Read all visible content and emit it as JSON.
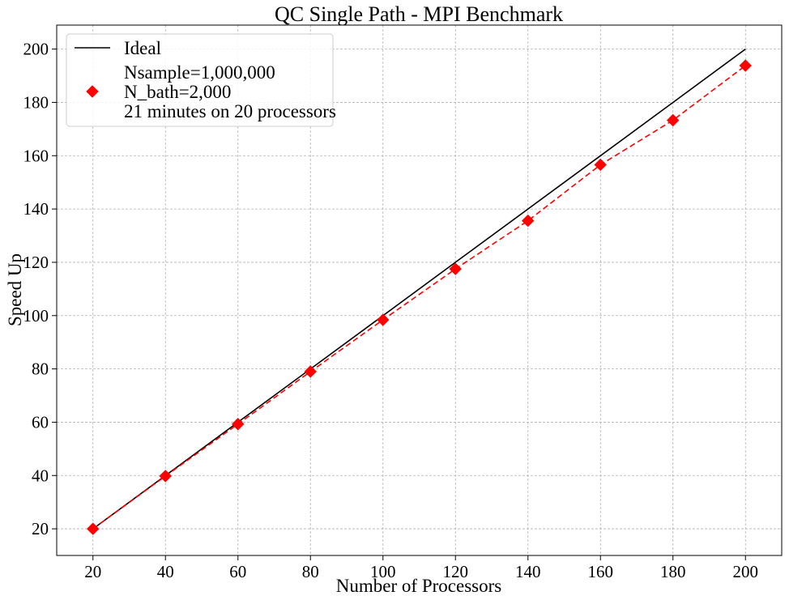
{
  "chart_data": {
    "type": "line",
    "title": "QC Single Path - MPI Benchmark",
    "xlabel": "Number of Processors",
    "ylabel": "Speed Up",
    "xlim": [
      10,
      210
    ],
    "ylim": [
      10,
      209
    ],
    "xticks": [
      20,
      40,
      60,
      80,
      100,
      120,
      140,
      160,
      180,
      200
    ],
    "yticks": [
      20,
      40,
      60,
      80,
      100,
      120,
      140,
      160,
      180,
      200
    ],
    "grid": true,
    "legend_position": "top-left",
    "series": [
      {
        "name": "Ideal",
        "style": "solid-line",
        "color": "#000000",
        "x": [
          20,
          40,
          60,
          80,
          100,
          120,
          140,
          160,
          180,
          200
        ],
        "y": [
          20,
          40,
          60,
          80,
          100,
          120,
          140,
          160,
          180,
          200
        ]
      },
      {
        "name": "Nsample=1,000,000",
        "name_lines": [
          "Nsample=1,000,000",
          "N_bath=2,000",
          "21 minutes on 20 processors"
        ],
        "style": "dashed-line-diamond-markers",
        "color": "#ff0000",
        "x": [
          20,
          40,
          60,
          80,
          100,
          120,
          140,
          160,
          180,
          200
        ],
        "y": [
          20,
          39.8,
          59.3,
          79.0,
          98.4,
          117.5,
          135.6,
          156.6,
          173.3,
          193.8
        ]
      }
    ]
  }
}
